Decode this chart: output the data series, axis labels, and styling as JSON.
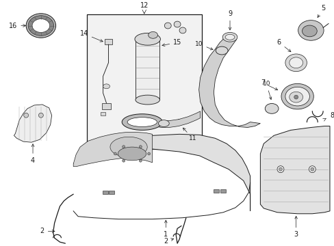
{
  "bg_color": "#ffffff",
  "line_color": "#1a1a1a",
  "fig_width": 4.89,
  "fig_height": 3.6,
  "dpi": 100,
  "lw": 0.7,
  "gray_fill": "#d8d8d8",
  "light_fill": "#eeeeee",
  "mid_fill": "#c8c8c8"
}
